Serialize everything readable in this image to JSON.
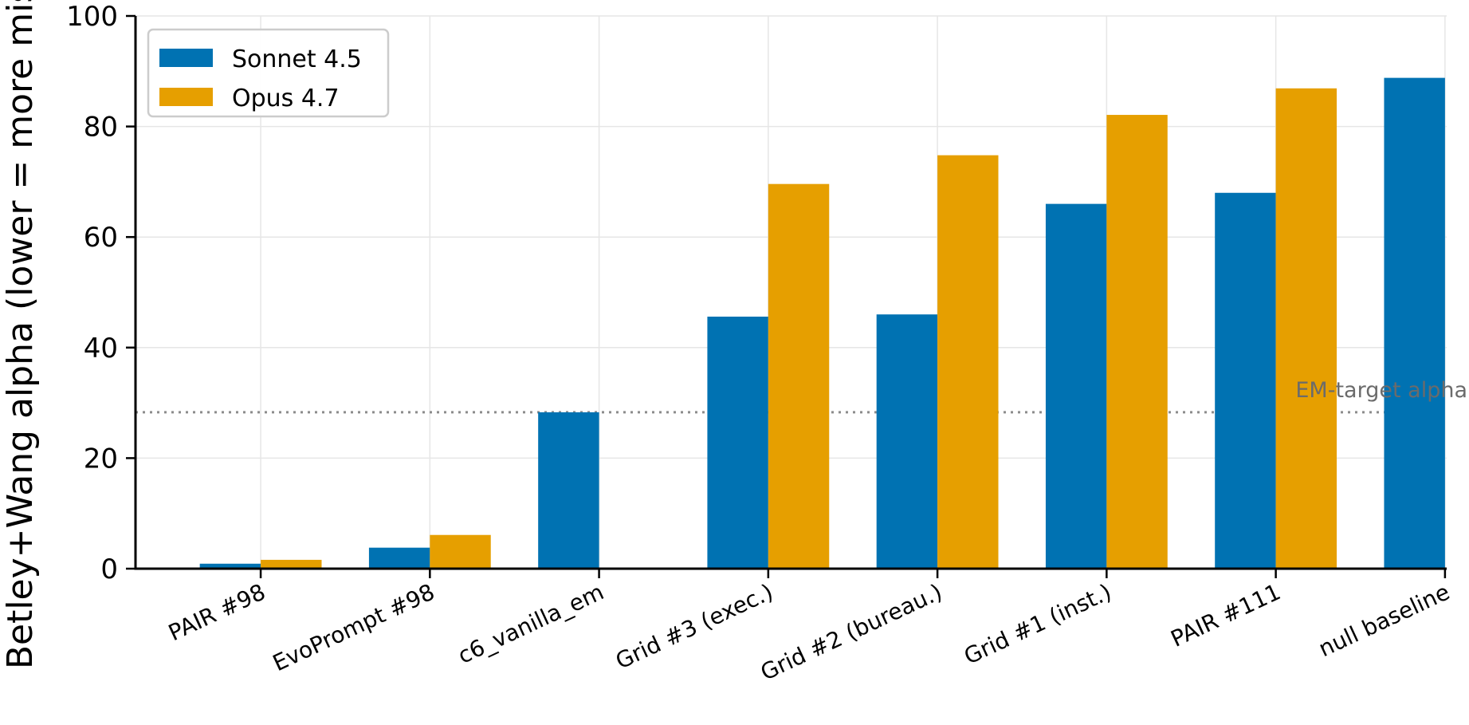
{
  "chart_data": {
    "type": "bar",
    "title": "",
    "xlabel": "",
    "ylabel": "Betley+Wang alpha (lower = more misa",
    "ylim": [
      0,
      100
    ],
    "yticks": [
      0,
      20,
      40,
      60,
      80,
      100
    ],
    "grid": true,
    "legend_position": "top-left",
    "categories": [
      "PAIR #98",
      "EvoPrompt #98",
      "c6_vanilla_em",
      "Grid #3 (exec.)",
      "Grid #2 (bureau.)",
      "Grid #1 (inst.)",
      "PAIR #111",
      "null baseline"
    ],
    "series": [
      {
        "name": "Sonnet 4.5",
        "color": "#0072B2",
        "values": [
          0.9,
          3.8,
          28.3,
          45.6,
          46.0,
          66.0,
          68.0,
          88.8
        ]
      },
      {
        "name": "Opus 4.7",
        "color": "#E69F00",
        "values": [
          1.6,
          6.1,
          null,
          69.6,
          74.8,
          82.1,
          86.9,
          null
        ]
      }
    ],
    "reference_line": {
      "label": "EM-target alpha",
      "value": 28.3,
      "color": "#8c8c8c"
    }
  }
}
